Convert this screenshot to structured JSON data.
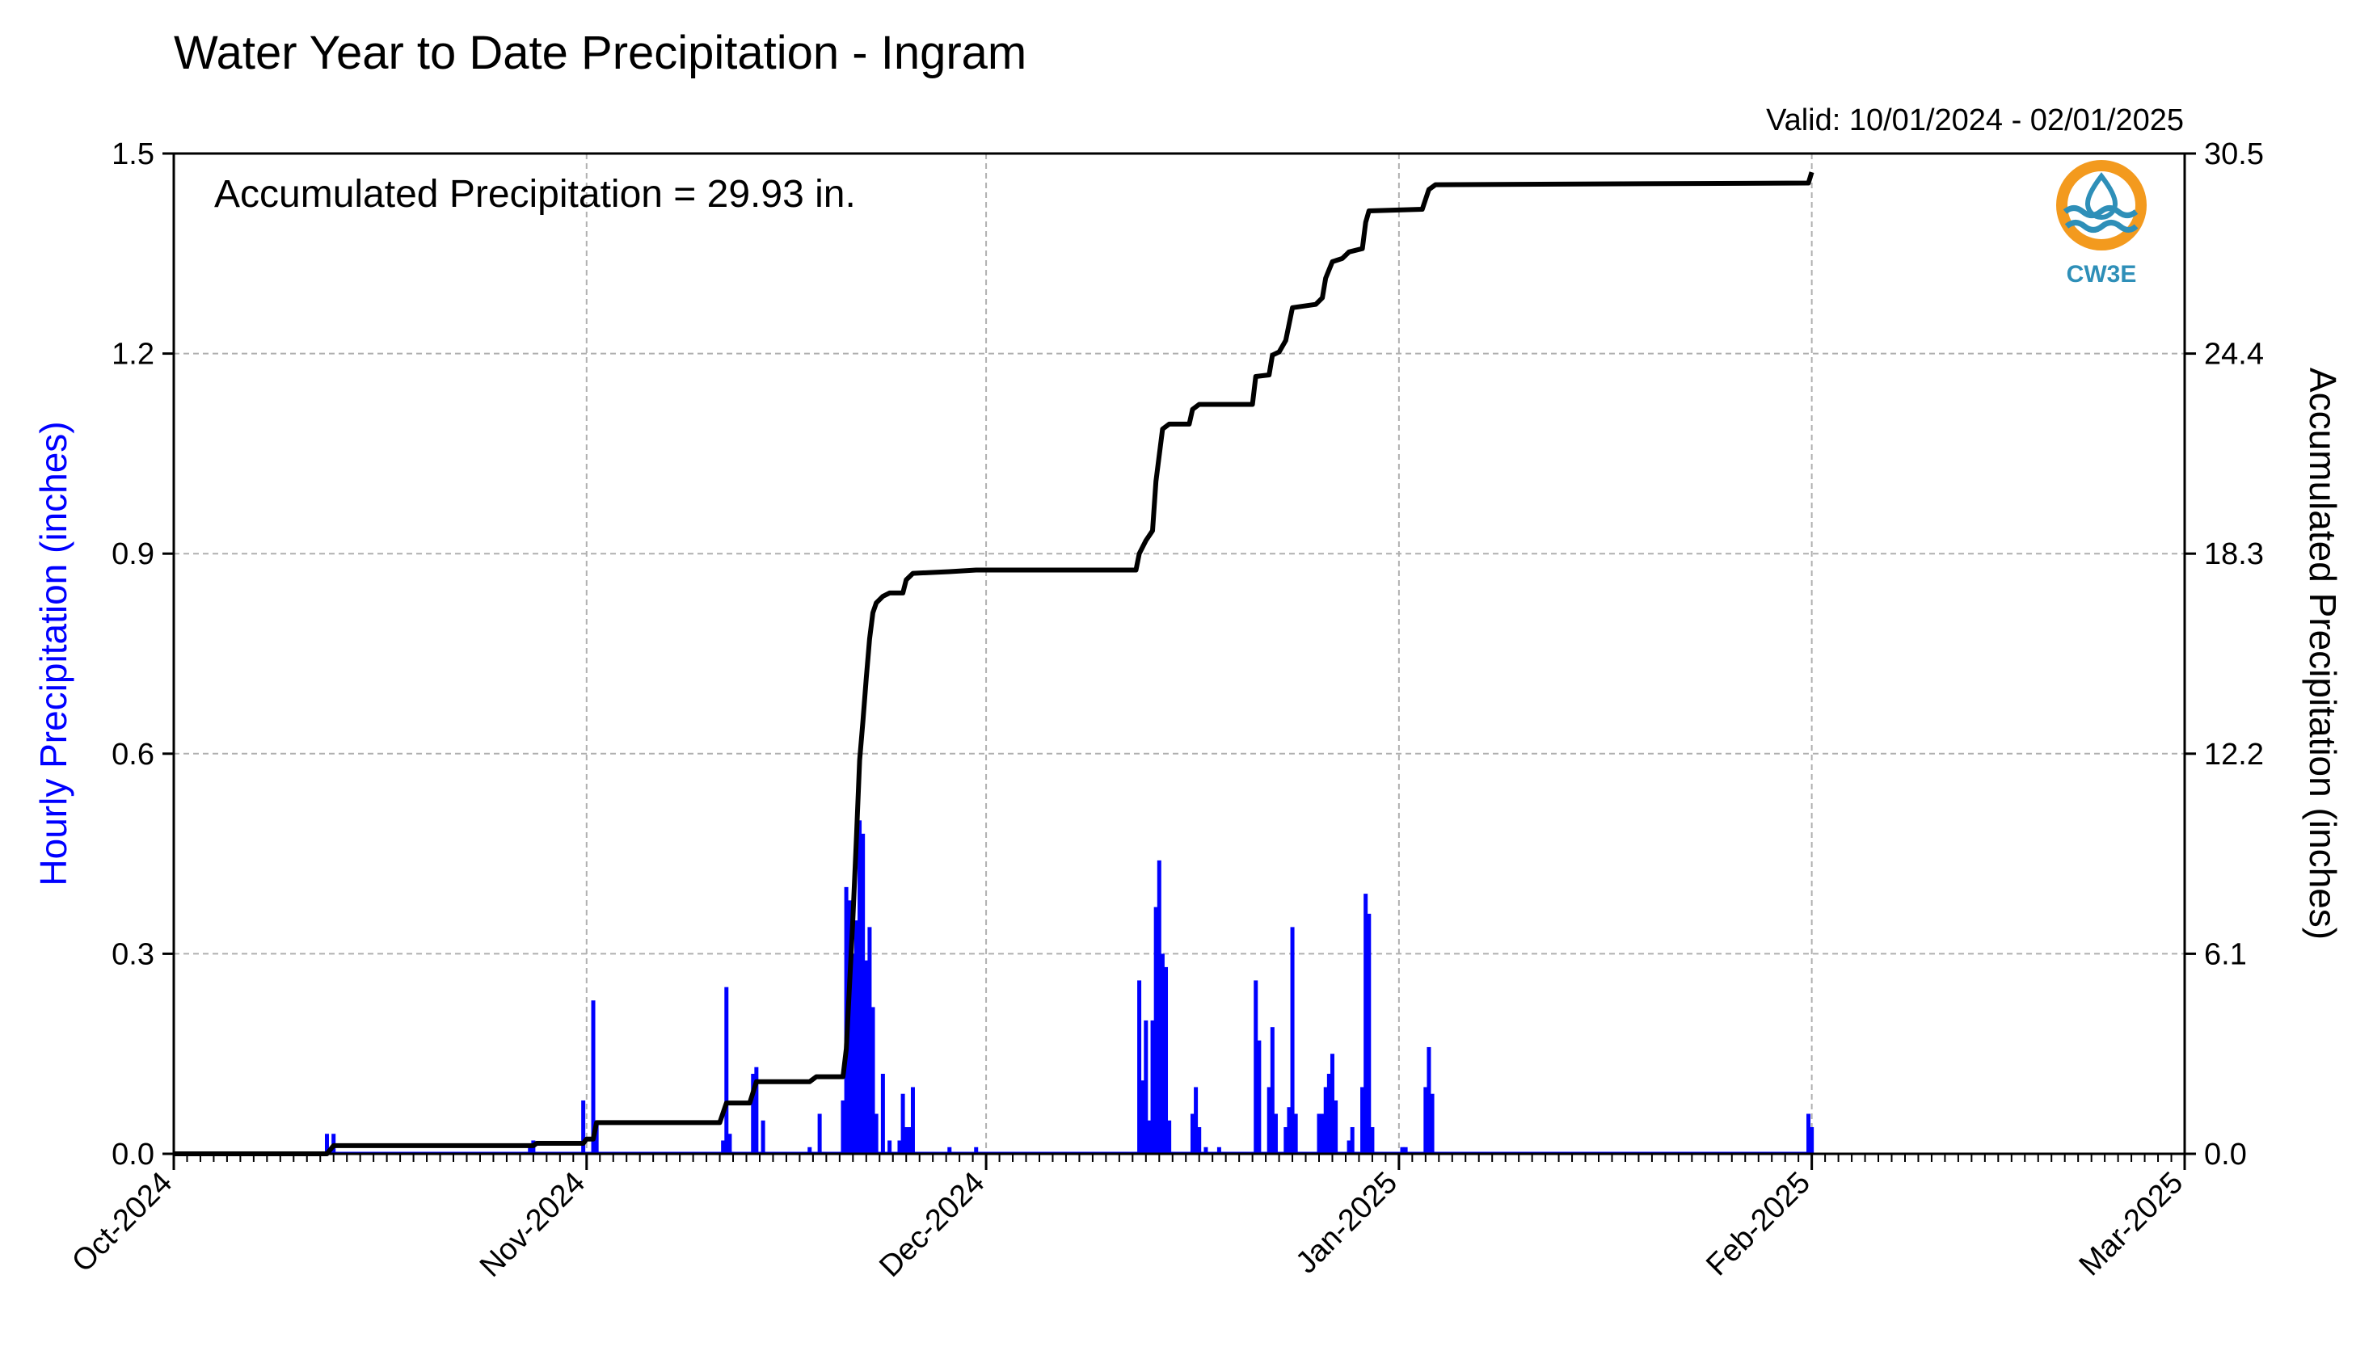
{
  "colors": {
    "hourly": "#0000ff",
    "accum": "#000000",
    "logo_orange": "#f39a1e",
    "logo_blue": "#2e8fb8"
  },
  "chart_data": {
    "type": "bar",
    "title": "Water Year to Date Precipitation - Ingram",
    "valid_text": "Valid: 10/01/2024 - 02/01/2025",
    "annotation": "Accumulated Precipitation = 29.93 in.",
    "ylabel": "Hourly Precipitation (inches)",
    "y2label": "Accumulated Precipitation (inches)",
    "xlim": [
      "2024-10-01",
      "2025-03-01"
    ],
    "ylim": [
      0,
      1.5
    ],
    "y2lim": [
      0,
      30.5
    ],
    "yticks": [
      "0.0",
      "0.3",
      "0.6",
      "0.9",
      "1.2",
      "1.5"
    ],
    "y2ticks": [
      "0.0",
      "6.1",
      "12.2",
      "18.3",
      "24.4",
      "30.5"
    ],
    "xticks": [
      {
        "date": "2024-10-01",
        "label": "Oct-2024"
      },
      {
        "date": "2024-11-01",
        "label": "Nov-2024"
      },
      {
        "date": "2024-12-01",
        "label": "Dec-2024"
      },
      {
        "date": "2025-01-01",
        "label": "Jan-2025"
      },
      {
        "date": "2025-02-01",
        "label": "Feb-2025"
      },
      {
        "date": "2025-03-01",
        "label": "Mar-2025"
      }
    ],
    "grid": true,
    "series": [
      {
        "name": "Hourly Precipitation",
        "type": "bar",
        "axis": "left",
        "points": [
          [
            "2024-10-12T12:00",
            0.03
          ],
          [
            "2024-10-13T00:00",
            0.03
          ],
          [
            "2024-10-27T18:00",
            0.01
          ],
          [
            "2024-10-28T00:00",
            0.02
          ],
          [
            "2024-10-31T18:00",
            0.08
          ],
          [
            "2024-11-01T12:00",
            0.23
          ],
          [
            "2024-11-01T18:00",
            0.05
          ],
          [
            "2024-11-11T06:00",
            0.02
          ],
          [
            "2024-11-11T12:00",
            0.25
          ],
          [
            "2024-11-11T18:00",
            0.03
          ],
          [
            "2024-11-13T12:00",
            0.12
          ],
          [
            "2024-11-13T18:00",
            0.13
          ],
          [
            "2024-11-14T06:00",
            0.05
          ],
          [
            "2024-11-17T18:00",
            0.01
          ],
          [
            "2024-11-18T12:00",
            0.06
          ],
          [
            "2024-11-20T06:00",
            0.08
          ],
          [
            "2024-11-20T12:00",
            0.4
          ],
          [
            "2024-11-20T18:00",
            0.38
          ],
          [
            "2024-11-21T00:00",
            0.3
          ],
          [
            "2024-11-21T06:00",
            0.35
          ],
          [
            "2024-11-21T12:00",
            0.5
          ],
          [
            "2024-11-21T18:00",
            0.48
          ],
          [
            "2024-11-22T00:00",
            0.29
          ],
          [
            "2024-11-22T06:00",
            0.34
          ],
          [
            "2024-11-22T12:00",
            0.22
          ],
          [
            "2024-11-22T18:00",
            0.06
          ],
          [
            "2024-11-23T06:00",
            0.12
          ],
          [
            "2024-11-23T18:00",
            0.02
          ],
          [
            "2024-11-24T12:00",
            0.02
          ],
          [
            "2024-11-24T18:00",
            0.09
          ],
          [
            "2024-11-25T00:00",
            0.04
          ],
          [
            "2024-11-25T06:00",
            0.04
          ],
          [
            "2024-11-25T12:00",
            0.1
          ],
          [
            "2024-11-28T06:00",
            0.01
          ],
          [
            "2024-11-30T06:00",
            0.01
          ],
          [
            "2024-12-12T12:00",
            0.26
          ],
          [
            "2024-12-12T18:00",
            0.11
          ],
          [
            "2024-12-13T00:00",
            0.2
          ],
          [
            "2024-12-13T06:00",
            0.05
          ],
          [
            "2024-12-13T12:00",
            0.2
          ],
          [
            "2024-12-13T18:00",
            0.37
          ],
          [
            "2024-12-14T00:00",
            0.44
          ],
          [
            "2024-12-14T06:00",
            0.3
          ],
          [
            "2024-12-14T12:00",
            0.28
          ],
          [
            "2024-12-14T18:00",
            0.05
          ],
          [
            "2024-12-16T12:00",
            0.06
          ],
          [
            "2024-12-16T18:00",
            0.1
          ],
          [
            "2024-12-17T00:00",
            0.04
          ],
          [
            "2024-12-17T12:00",
            0.01
          ],
          [
            "2024-12-18T12:00",
            0.01
          ],
          [
            "2024-12-21T06:00",
            0.26
          ],
          [
            "2024-12-21T12:00",
            0.17
          ],
          [
            "2024-12-22T06:00",
            0.1
          ],
          [
            "2024-12-22T12:00",
            0.19
          ],
          [
            "2024-12-22T18:00",
            0.06
          ],
          [
            "2024-12-23T12:00",
            0.04
          ],
          [
            "2024-12-23T18:00",
            0.07
          ],
          [
            "2024-12-24T00:00",
            0.34
          ],
          [
            "2024-12-24T06:00",
            0.06
          ],
          [
            "2024-12-26T00:00",
            0.06
          ],
          [
            "2024-12-26T06:00",
            0.06
          ],
          [
            "2024-12-26T12:00",
            0.1
          ],
          [
            "2024-12-26T18:00",
            0.12
          ],
          [
            "2024-12-27T00:00",
            0.15
          ],
          [
            "2024-12-27T06:00",
            0.08
          ],
          [
            "2024-12-28T06:00",
            0.02
          ],
          [
            "2024-12-28T12:00",
            0.04
          ],
          [
            "2024-12-29T06:00",
            0.1
          ],
          [
            "2024-12-29T12:00",
            0.39
          ],
          [
            "2024-12-29T18:00",
            0.36
          ],
          [
            "2024-12-30T00:00",
            0.04
          ],
          [
            "2025-01-01T06:00",
            0.01
          ],
          [
            "2025-01-01T12:00",
            0.01
          ],
          [
            "2025-01-03T00:00",
            0.1
          ],
          [
            "2025-01-03T06:00",
            0.16
          ],
          [
            "2025-01-03T12:00",
            0.09
          ],
          [
            "2025-01-31T18:00",
            0.06
          ],
          [
            "2025-02-01T00:00",
            0.04
          ]
        ]
      },
      {
        "name": "Accumulated Precipitation",
        "type": "line",
        "axis": "right",
        "points": [
          [
            "2024-10-01T00:00",
            0.0
          ],
          [
            "2024-10-12T12:00",
            0.0
          ],
          [
            "2024-10-13T00:00",
            0.25
          ],
          [
            "2024-10-28T00:00",
            0.25
          ],
          [
            "2024-10-28T06:00",
            0.32
          ],
          [
            "2024-10-31T18:00",
            0.32
          ],
          [
            "2024-11-01T00:00",
            0.45
          ],
          [
            "2024-11-01T12:00",
            0.45
          ],
          [
            "2024-11-01T18:00",
            0.95
          ],
          [
            "2024-11-11T00:00",
            0.95
          ],
          [
            "2024-11-11T12:00",
            1.55
          ],
          [
            "2024-11-13T06:00",
            1.55
          ],
          [
            "2024-11-13T18:00",
            2.2
          ],
          [
            "2024-11-17T18:00",
            2.2
          ],
          [
            "2024-11-18T06:00",
            2.35
          ],
          [
            "2024-11-20T06:00",
            2.35
          ],
          [
            "2024-11-20T12:00",
            3.2
          ],
          [
            "2024-11-20T18:00",
            5.2
          ],
          [
            "2024-11-21T00:00",
            7.2
          ],
          [
            "2024-11-21T06:00",
            9.5
          ],
          [
            "2024-11-21T12:00",
            12.0
          ],
          [
            "2024-11-21T18:00",
            13.2
          ],
          [
            "2024-11-22T00:00",
            14.5
          ],
          [
            "2024-11-22T06:00",
            15.7
          ],
          [
            "2024-11-22T12:00",
            16.5
          ],
          [
            "2024-11-22T18:00",
            16.8
          ],
          [
            "2024-11-23T06:00",
            17.0
          ],
          [
            "2024-11-23T18:00",
            17.1
          ],
          [
            "2024-11-24T18:00",
            17.1
          ],
          [
            "2024-11-25T00:00",
            17.5
          ],
          [
            "2024-11-25T12:00",
            17.7
          ],
          [
            "2024-11-28T06:00",
            17.75
          ],
          [
            "2024-11-30T06:00",
            17.8
          ],
          [
            "2024-12-12T06:00",
            17.8
          ],
          [
            "2024-12-12T12:00",
            18.3
          ],
          [
            "2024-12-13T00:00",
            18.7
          ],
          [
            "2024-12-13T12:00",
            19.0
          ],
          [
            "2024-12-13T18:00",
            20.5
          ],
          [
            "2024-12-14T00:00",
            21.3
          ],
          [
            "2024-12-14T06:00",
            22.1
          ],
          [
            "2024-12-14T18:00",
            22.25
          ],
          [
            "2024-12-16T06:00",
            22.25
          ],
          [
            "2024-12-16T12:00",
            22.7
          ],
          [
            "2024-12-17T00:00",
            22.85
          ],
          [
            "2024-12-21T00:00",
            22.85
          ],
          [
            "2024-12-21T06:00",
            23.7
          ],
          [
            "2024-12-22T06:00",
            23.75
          ],
          [
            "2024-12-22T12:00",
            24.35
          ],
          [
            "2024-12-23T00:00",
            24.45
          ],
          [
            "2024-12-23T12:00",
            24.8
          ],
          [
            "2024-12-24T00:00",
            25.8
          ],
          [
            "2024-12-25T18:00",
            25.9
          ],
          [
            "2024-12-26T06:00",
            26.1
          ],
          [
            "2024-12-26T12:00",
            26.7
          ],
          [
            "2024-12-27T00:00",
            27.2
          ],
          [
            "2024-12-27T18:00",
            27.3
          ],
          [
            "2024-12-28T06:00",
            27.5
          ],
          [
            "2024-12-29T06:00",
            27.6
          ],
          [
            "2024-12-29T12:00",
            28.4
          ],
          [
            "2024-12-29T18:00",
            28.75
          ],
          [
            "2025-01-02T18:00",
            28.8
          ],
          [
            "2025-01-03T06:00",
            29.4
          ],
          [
            "2025-01-03T18:00",
            29.55
          ],
          [
            "2025-01-31T18:00",
            29.6
          ],
          [
            "2025-02-01T00:00",
            29.93
          ]
        ]
      }
    ]
  },
  "logo": {
    "text": "CW3E"
  }
}
